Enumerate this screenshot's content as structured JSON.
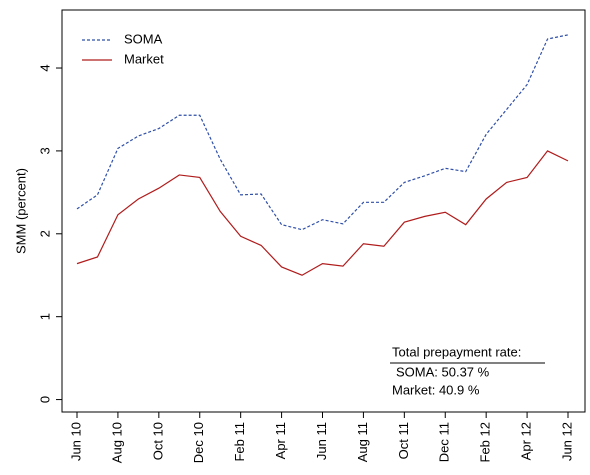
{
  "chart_data": {
    "type": "line",
    "y_label": "SMM (percent)",
    "categories": [
      "Jun 10",
      null,
      "Aug 10",
      null,
      "Oct 10",
      null,
      "Dec 10",
      null,
      "Feb 11",
      null,
      "Apr 11",
      null,
      "Jun 11",
      null,
      "Aug 11",
      null,
      "Oct 11",
      null,
      "Dec 11",
      null,
      "Feb 12",
      null,
      "Apr 12",
      null,
      "Jun 12"
    ],
    "series": [
      {
        "name": "SOMA",
        "color": "#2f4fa8",
        "dash": true,
        "values": [
          2.3,
          2.47,
          3.03,
          3.18,
          3.27,
          3.43,
          3.43,
          2.9,
          2.47,
          2.48,
          2.11,
          2.05,
          2.17,
          2.12,
          2.38,
          2.38,
          2.62,
          2.7,
          2.79,
          2.75,
          3.2,
          3.5,
          3.8,
          4.35,
          4.4
        ]
      },
      {
        "name": "Market",
        "color": "#b01c1c",
        "dash": false,
        "values": [
          1.64,
          1.72,
          2.23,
          2.42,
          2.55,
          2.71,
          2.68,
          2.27,
          1.97,
          1.86,
          1.6,
          1.5,
          1.64,
          1.61,
          1.88,
          1.85,
          2.14,
          2.21,
          2.26,
          2.11,
          2.42,
          2.62,
          2.68,
          3.0,
          2.88
        ]
      }
    ],
    "ylim": [
      -0.15,
      4.7
    ],
    "yticks": [
      0,
      1,
      2,
      3,
      4
    ],
    "legend": "upper-left",
    "annotation": {
      "title": "Total prepayment rate:",
      "lines": [
        "SOMA:  50.37 %",
        "Market:  40.9 %"
      ]
    }
  }
}
